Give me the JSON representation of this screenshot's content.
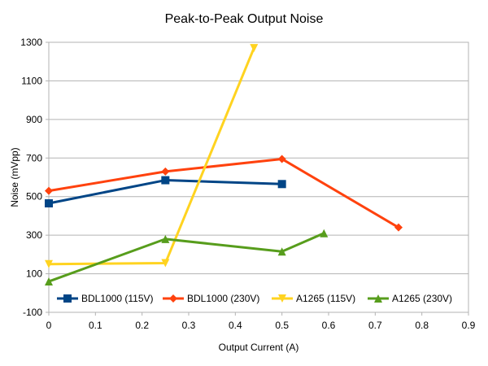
{
  "chart_data": {
    "type": "line",
    "title": "Peak-to-Peak Output Noise",
    "xlabel": "Output Current (A)",
    "ylabel": "Noise (mVpp)",
    "xlim": [
      0,
      0.9
    ],
    "ylim": [
      -100,
      1300
    ],
    "x_ticks": [
      "0",
      "0.1",
      "0.2",
      "0.3",
      "0.4",
      "0.5",
      "0.6",
      "0.7",
      "0.8",
      "0.9"
    ],
    "y_ticks": [
      "-100",
      "100",
      "300",
      "500",
      "700",
      "900",
      "1100",
      "1300"
    ],
    "grid": true,
    "legend_position": "bottom-inside",
    "series": [
      {
        "name": "BDL1000 (115V)",
        "color": "#004586",
        "marker": "square",
        "points": [
          [
            0,
            465
          ],
          [
            0.25,
            585
          ],
          [
            0.5,
            565
          ]
        ]
      },
      {
        "name": "BDL1000 (230V)",
        "color": "#ff420e",
        "marker": "diamond",
        "points": [
          [
            0,
            530
          ],
          [
            0.25,
            630
          ],
          [
            0.5,
            695
          ],
          [
            0.75,
            340
          ]
        ]
      },
      {
        "name": "A1265 (115V)",
        "color": "#ffd320",
        "marker": "triangle-down",
        "points": [
          [
            0,
            150
          ],
          [
            0.25,
            155
          ],
          [
            0.44,
            1270
          ]
        ]
      },
      {
        "name": "A1265 (230V)",
        "color": "#579d1c",
        "marker": "triangle-up",
        "points": [
          [
            0,
            60
          ],
          [
            0.25,
            280
          ],
          [
            0.5,
            215
          ],
          [
            0.59,
            310
          ]
        ]
      }
    ]
  }
}
